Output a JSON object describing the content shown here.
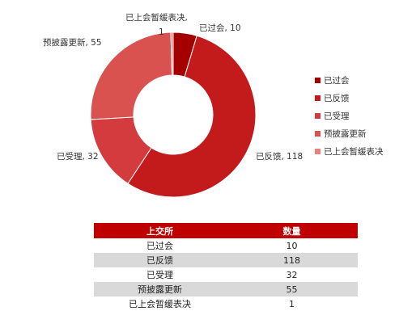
{
  "chart_data": {
    "type": "pie",
    "donut": true,
    "title": "",
    "legend_position": "right",
    "slices": [
      {
        "name": "已过会",
        "value": 10,
        "color": "#a50000",
        "label": "已过会, 10"
      },
      {
        "name": "已反馈",
        "value": 118,
        "color": "#c31a1c",
        "label": "已反馈, 118"
      },
      {
        "name": "已受理",
        "value": 32,
        "color": "#d43b3e",
        "label": "已受理, 32"
      },
      {
        "name": "预披露更新",
        "value": 55,
        "color": "#d9524f",
        "label": "预披露更新, 55"
      },
      {
        "name": "已上会暂缓表决",
        "value": 1,
        "color": "#e8817e",
        "label_top": "已上会暂缓表决,",
        "label_bottom": "1"
      }
    ]
  },
  "table": {
    "headers": [
      "上交所",
      "数量"
    ],
    "rows": [
      {
        "name": "已过会",
        "count": "10"
      },
      {
        "name": "已反馈",
        "count": "118"
      },
      {
        "name": "已受理",
        "count": "32"
      },
      {
        "name": "预披露更新",
        "count": "55"
      },
      {
        "name": "已上会暂缓表决",
        "count": "1"
      }
    ]
  }
}
